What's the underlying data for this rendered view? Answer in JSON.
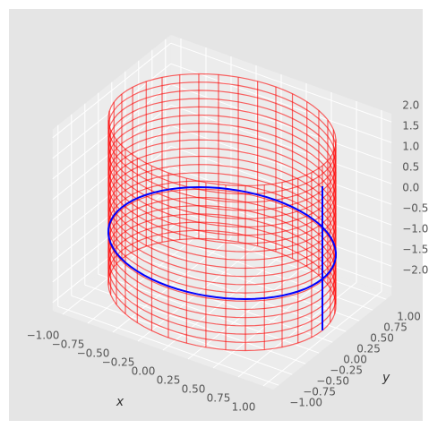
{
  "chart_data": {
    "type": "surface3d",
    "xlabel": "x",
    "ylabel": "y",
    "xlim": [
      -1.1,
      1.1
    ],
    "ylim": [
      -1.1,
      1.1
    ],
    "zlim": [
      -2.2,
      2.2
    ],
    "xticks": [
      {
        "value": -1,
        "label": "−1.00"
      },
      {
        "value": -0.75,
        "label": "−0.75"
      },
      {
        "value": -0.5,
        "label": "−0.50"
      },
      {
        "value": -0.25,
        "label": "−0.25"
      },
      {
        "value": 0,
        "label": "0.00"
      },
      {
        "value": 0.25,
        "label": "0.25"
      },
      {
        "value": 0.5,
        "label": "0.50"
      },
      {
        "value": 0.75,
        "label": "0.75"
      },
      {
        "value": 1,
        "label": "1.00"
      }
    ],
    "yticks": [
      {
        "value": -1,
        "label": "−1.00"
      },
      {
        "value": -0.75,
        "label": "−0.75"
      },
      {
        "value": -0.5,
        "label": "−0.50"
      },
      {
        "value": -0.25,
        "label": "−0.25"
      },
      {
        "value": 0,
        "label": "0.00"
      },
      {
        "value": 0.25,
        "label": "0.25"
      },
      {
        "value": 0.5,
        "label": "0.50"
      },
      {
        "value": 0.75,
        "label": "0.75"
      },
      {
        "value": 1,
        "label": "1.00"
      }
    ],
    "zticks": [
      {
        "value": -2,
        "label": "−2.0"
      },
      {
        "value": -1.5,
        "label": "−1.5"
      },
      {
        "value": -1,
        "label": "−1.0"
      },
      {
        "value": -0.5,
        "label": "−0.5"
      },
      {
        "value": 0,
        "label": "0.0"
      },
      {
        "value": 0.5,
        "label": "0.5"
      },
      {
        "value": 1,
        "label": "1.0"
      },
      {
        "value": 1.5,
        "label": "1.5"
      },
      {
        "value": 2,
        "label": "2.0"
      }
    ],
    "cylinder": {
      "radius": 1,
      "z": [
        -2,
        2
      ],
      "color": "#ff0000"
    },
    "circle": {
      "radius": 1,
      "z": -0.75,
      "color": "#0000ff"
    },
    "segment": {
      "x": 1,
      "y": 0,
      "z": [
        -2,
        1.5
      ],
      "color": "#0000ff"
    }
  }
}
